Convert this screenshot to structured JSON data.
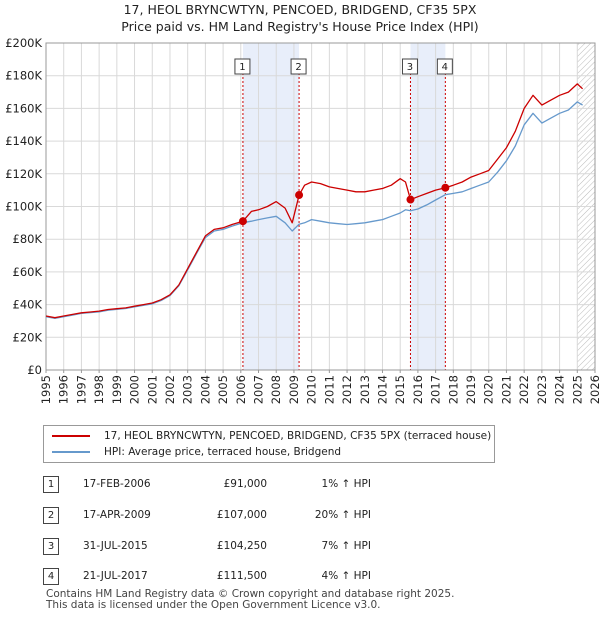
{
  "title_line1": "17, HEOL BRYNCWTYN, PENCOED, BRIDGEND, CF35 5PX",
  "title_line2": "Price paid vs. HM Land Registry's House Price Index (HPI)",
  "chart_data": {
    "type": "line",
    "title": "Price paid vs. HM Land Registry's House Price Index (HPI)",
    "xlabel": "",
    "ylabel": "",
    "xlim": [
      1995,
      2026
    ],
    "ylim": [
      0,
      200000
    ],
    "y_ticks": [
      "£0",
      "£20K",
      "£40K",
      "£60K",
      "£80K",
      "£100K",
      "£120K",
      "£140K",
      "£160K",
      "£180K",
      "£200K"
    ],
    "y_tick_values": [
      0,
      20000,
      40000,
      60000,
      80000,
      100000,
      120000,
      140000,
      160000,
      180000,
      200000
    ],
    "x_ticks": [
      "1995",
      "1996",
      "1997",
      "1998",
      "1999",
      "2000",
      "2001",
      "2002",
      "2003",
      "2004",
      "2005",
      "2006",
      "2007",
      "2008",
      "2009",
      "2010",
      "2011",
      "2012",
      "2013",
      "2014",
      "2015",
      "2016",
      "2017",
      "2018",
      "2019",
      "2020",
      "2021",
      "2022",
      "2023",
      "2024",
      "2025",
      "2026"
    ],
    "grid": true,
    "series": [
      {
        "name": "17, HEOL BRYNCWTYN, PENCOED, BRIDGEND, CF35 5PX (terraced house)",
        "color": "#cc0000",
        "x": [
          1995.0,
          1995.5,
          1996.0,
          1996.5,
          1997.0,
          1997.5,
          1998.0,
          1998.5,
          1999.0,
          1999.5,
          2000.0,
          2000.5,
          2001.0,
          2001.5,
          2002.0,
          2002.5,
          2003.0,
          2003.5,
          2004.0,
          2004.5,
          2005.0,
          2005.5,
          2006.12,
          2006.6,
          2007.0,
          2007.5,
          2008.0,
          2008.5,
          2008.9,
          2009.29,
          2009.6,
          2010.0,
          2010.5,
          2011.0,
          2011.5,
          2012.0,
          2012.5,
          2013.0,
          2013.5,
          2014.0,
          2014.5,
          2015.0,
          2015.3,
          2015.58,
          2016.0,
          2016.5,
          2017.0,
          2017.55,
          2018.0,
          2018.5,
          2019.0,
          2019.5,
          2020.0,
          2020.5,
          2021.0,
          2021.5,
          2022.0,
          2022.5,
          2023.0,
          2023.5,
          2024.0,
          2024.5,
          2025.0,
          2025.3
        ],
        "values": [
          33000,
          32000,
          33000,
          34000,
          35000,
          35500,
          36000,
          37000,
          37500,
          38000,
          39000,
          40000,
          41000,
          43000,
          46000,
          52000,
          62000,
          72000,
          82000,
          86000,
          87000,
          89000,
          91000,
          97000,
          98000,
          100000,
          103000,
          99000,
          90000,
          107000,
          113000,
          115000,
          114000,
          112000,
          111000,
          110000,
          109000,
          109000,
          110000,
          111000,
          113000,
          117000,
          115000,
          104250,
          106000,
          108000,
          110000,
          111500,
          113000,
          115000,
          118000,
          120000,
          122000,
          129000,
          136000,
          146000,
          160000,
          168000,
          162000,
          165000,
          168000,
          170000,
          175000,
          172000
        ]
      },
      {
        "name": "HPI: Average price, terraced house, Bridgend",
        "color": "#6699cc",
        "x": [
          1995.0,
          1995.5,
          1996.0,
          1996.5,
          1997.0,
          1997.5,
          1998.0,
          1998.5,
          1999.0,
          1999.5,
          2000.0,
          2000.5,
          2001.0,
          2001.5,
          2002.0,
          2002.5,
          2003.0,
          2003.5,
          2004.0,
          2004.5,
          2005.0,
          2005.5,
          2006.12,
          2006.6,
          2007.0,
          2007.5,
          2008.0,
          2008.5,
          2008.9,
          2009.29,
          2009.6,
          2010.0,
          2010.5,
          2011.0,
          2011.5,
          2012.0,
          2012.5,
          2013.0,
          2013.5,
          2014.0,
          2014.5,
          2015.0,
          2015.3,
          2015.58,
          2016.0,
          2016.5,
          2017.0,
          2017.55,
          2018.0,
          2018.5,
          2019.0,
          2019.5,
          2020.0,
          2020.5,
          2021.0,
          2021.5,
          2022.0,
          2022.5,
          2023.0,
          2023.5,
          2024.0,
          2024.5,
          2025.0,
          2025.3
        ],
        "values": [
          32600,
          31600,
          32600,
          33600,
          34600,
          35100,
          35600,
          36600,
          37100,
          37600,
          38600,
          39500,
          40500,
          42500,
          45500,
          51500,
          61300,
          71200,
          81000,
          85000,
          86000,
          88000,
          90100,
          91000,
          92000,
          93000,
          94000,
          90000,
          85000,
          89200,
          90000,
          92000,
          91000,
          90000,
          89500,
          89000,
          89500,
          90000,
          91000,
          92000,
          94000,
          96000,
          98000,
          97400,
          98500,
          101000,
          104000,
          107200,
          108000,
          109000,
          111000,
          113000,
          115000,
          121000,
          128000,
          137000,
          150000,
          157000,
          151000,
          154000,
          157000,
          159000,
          164000,
          162000
        ]
      }
    ],
    "annotations": [
      {
        "label": "1",
        "x": 2006.12,
        "y": 91000
      },
      {
        "label": "2",
        "x": 2009.29,
        "y": 107000
      },
      {
        "label": "3",
        "x": 2015.58,
        "y": 104250
      },
      {
        "label": "4",
        "x": 2017.55,
        "y": 111500
      }
    ],
    "shaded_ranges": [
      [
        2006.12,
        2009.29
      ],
      [
        2015.58,
        2017.55
      ]
    ],
    "hatched_from": 2025.0
  },
  "legend": {
    "property_label": "17, HEOL BRYNCWTYN, PENCOED, BRIDGEND, CF35 5PX (terraced house)",
    "hpi_label": "HPI: Average price, terraced house, Bridgend"
  },
  "transactions": [
    {
      "num": "1",
      "date": "17-FEB-2006",
      "price": "£91,000",
      "hpi": "1% ↑ HPI"
    },
    {
      "num": "2",
      "date": "17-APR-2009",
      "price": "£107,000",
      "hpi": "20% ↑ HPI"
    },
    {
      "num": "3",
      "date": "31-JUL-2015",
      "price": "£104,250",
      "hpi": "7% ↑ HPI"
    },
    {
      "num": "4",
      "date": "21-JUL-2017",
      "price": "£111,500",
      "hpi": "4% ↑ HPI"
    }
  ],
  "footer_line1": "Contains HM Land Registry data © Crown copyright and database right 2025.",
  "footer_line2": "This data is licensed under the Open Government Licence v3.0.",
  "colors": {
    "property": "#cc0000",
    "hpi": "#6699cc",
    "shade": "#e8eefa",
    "grid": "#d9d9d9"
  }
}
